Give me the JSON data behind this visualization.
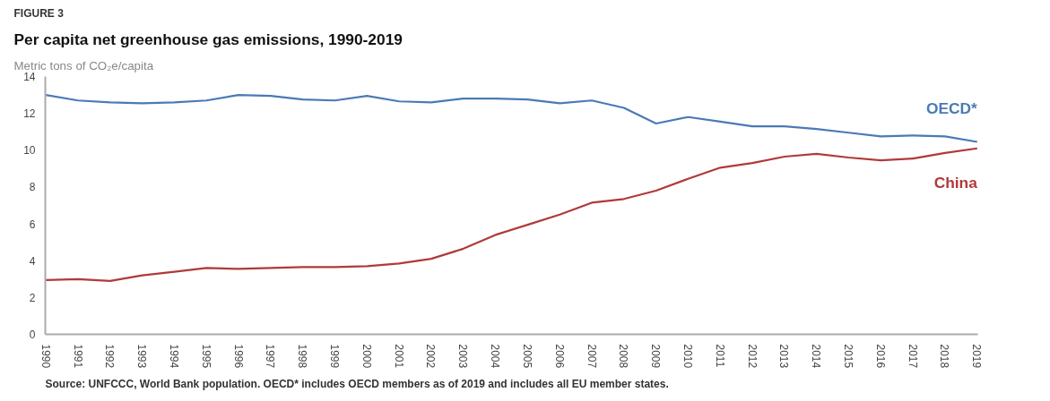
{
  "chart_data": {
    "type": "line",
    "title": "Per capita net greenhouse gas emissions, 1990-2019",
    "ylabel": "Metric tons of CO₂e/capita",
    "annotations": [
      "FIGURE 3",
      "Source: UNFCCC, World Bank population. OECD* includes OECD members as of 2019 and includes all EU member states."
    ],
    "categories": [
      "1990",
      "1991",
      "1992",
      "1993",
      "1994",
      "1995",
      "1996",
      "1997",
      "1998",
      "1999",
      "2000",
      "2001",
      "2002",
      "2003",
      "2004",
      "2005",
      "2006",
      "2007",
      "2008",
      "2009",
      "2010",
      "2011",
      "2012",
      "2013",
      "2014",
      "2015",
      "2016",
      "2017",
      "2018",
      "2019"
    ],
    "series": [
      {
        "name": "OECD*",
        "color": "#4a7ab5",
        "values": [
          13.0,
          12.7,
          12.6,
          12.55,
          12.6,
          12.7,
          13.0,
          12.95,
          12.75,
          12.7,
          12.95,
          12.65,
          12.6,
          12.8,
          12.8,
          12.75,
          12.55,
          12.7,
          12.3,
          11.45,
          11.8,
          11.55,
          11.3,
          11.3,
          11.15,
          10.95,
          10.75,
          10.8,
          10.75,
          10.45
        ]
      },
      {
        "name": "China",
        "color": "#b03a3a",
        "values": [
          2.95,
          3.0,
          2.9,
          3.2,
          3.4,
          3.6,
          3.55,
          3.6,
          3.65,
          3.65,
          3.7,
          3.85,
          4.1,
          4.65,
          5.4,
          5.95,
          6.5,
          7.15,
          7.35,
          7.8,
          8.45,
          9.05,
          9.3,
          9.65,
          9.8,
          9.6,
          9.45,
          9.55,
          9.85,
          10.1
        ]
      }
    ],
    "ylim": [
      0,
      14
    ],
    "yticks": [
      0,
      2,
      4,
      6,
      8,
      10,
      12,
      14
    ],
    "grid": false
  }
}
